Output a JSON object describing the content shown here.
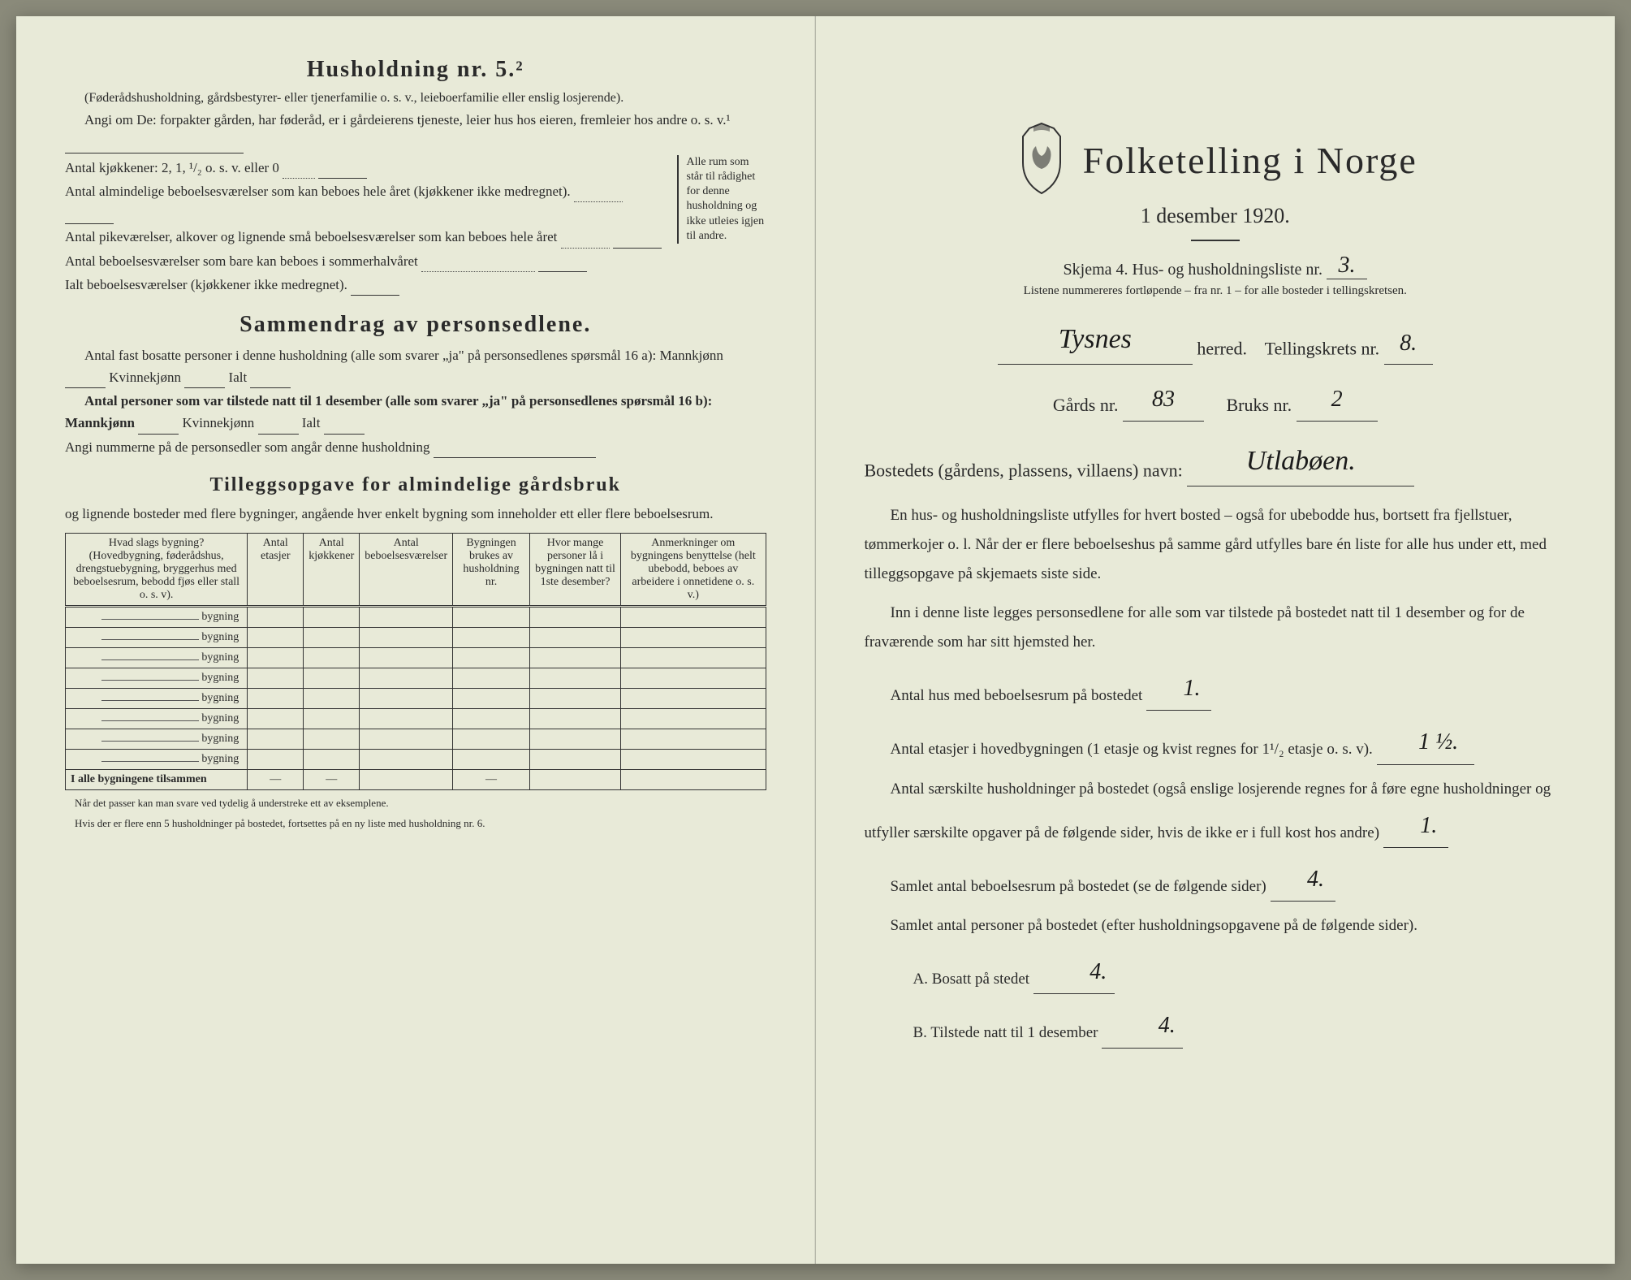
{
  "left": {
    "household_heading": "Husholdning nr. 5.²",
    "household_note": "(Føderådshusholdning, gårdsbestyrer- eller tjenerfamilie o. s. v., leieboerfamilie eller enslig losjerende).",
    "angi_om": "Angi om De:  forpakter gården, har føderåd, er i gårdeierens tjeneste, leier hus hos eieren, fremleier hos andre o. s. v.¹",
    "kitchens_label": "Antal kjøkkener: 2, 1, ¹/₂ o. s. v. eller 0",
    "rooms_1": "Antal almindelige beboelsesværelser som kan beboes hele året (kjøkkener ikke medregnet).",
    "rooms_2": "Antal pikeværelser, alkover og lignende små beboelsesværelser som kan beboes hele året",
    "rooms_3": "Antal beboelsesværelser som bare kan beboes i sommerhalvåret",
    "rooms_total": "Ialt beboelsesværelser  (kjøkkener ikke medregnet).",
    "brace_note": "Alle rum som står til rådighet for denne husholdning og ikke utleies igjen til andre.",
    "summary_heading": "Sammendrag av personsedlene.",
    "summary_1": "Antal fast bosatte personer i denne husholdning (alle som svarer „ja\" på personsedlenes spørsmål 16 a): Mannkjønn",
    "kvinne_label": "Kvinnekjønn",
    "ialt_label": "Ialt",
    "summary_2": "Antal personer som var tilstede natt til 1 desember (alle som svarer „ja\" på personsedlenes spørsmål 16 b): Mannkjønn",
    "summary_3": "Angi nummerne på de personsedler som angår denne husholdning",
    "tillegg_heading": "Tilleggsopgave for almindelige gårdsbruk",
    "tillegg_sub": "og lignende bosteder med flere bygninger, angående hver enkelt bygning som inneholder ett eller flere beboelsesrum.",
    "table": {
      "headers": [
        "Hvad slags bygning?\n(Hovedbygning, føderådshus, drengstuebygning, bryggerhus med beboelsesrum, bebodd fjøs eller stall o. s. v).",
        "Antal etasjer",
        "Antal kjøkkener",
        "Antal beboelsesværelser",
        "Bygningen brukes av husholdning nr.",
        "Hvor mange personer lå i bygningen natt til 1ste desember?",
        "Anmerkninger om bygningens benyttelse (helt ubebodd, beboes av arbeidere i onnetidene o. s. v.)"
      ],
      "row_suffix": "bygning",
      "row_count": 8,
      "total_label": "I alle bygningene tilsammen",
      "dash": "—"
    },
    "footnote1": "Når det passer kan man svare ved tydelig å understreke ett av eksemplene.",
    "footnote2": "Hvis der er flere enn 5 husholdninger på bostedet, fortsettes på en ny liste med husholdning nr. 6."
  },
  "right": {
    "title": "Folketelling  i  Norge",
    "date": "1 desember 1920.",
    "skjema": "Skjema 4.   Hus- og husholdningsliste nr.",
    "skjema_value": "3.",
    "listene_note": "Listene nummereres fortløpende – fra nr. 1 – for alle bosteder i tellingskretsen.",
    "herred_value": "Tysnes",
    "herred_label": "herred.",
    "tellingskrets_label": "Tellingskrets nr.",
    "tellingskrets_value": "8.",
    "gards_label": "Gårds nr.",
    "gards_value": "83",
    "bruks_label": "Bruks nr.",
    "bruks_value": "2",
    "bosted_label": "Bostedets (gårdens, plassens, villaens) navn:",
    "bosted_value": "Utlabøen.",
    "para1": "En hus- og husholdningsliste utfylles for hvert bosted – også for ubebodde hus, bortsett fra fjellstuer, tømmerkojer o. l.  Når der er flere beboelseshus på samme gård utfylles bare én liste for alle hus under ett, med tilleggsopgave på skjemaets siste side.",
    "para2": "Inn i denne liste legges personsedlene for alle som var tilstede på bostedet natt til 1 desember og for de fraværende som har sitt hjemsted her.",
    "q1": "Antal hus med beboelsesrum på bostedet",
    "q1_value": "1.",
    "q2a": "Antal etasjer i hovedbygningen (1 etasje og kvist regnes for 1¹/₂ etasje o. s. v).",
    "q2_value": "1 ½.",
    "q3": "Antal særskilte husholdninger på bostedet (også enslige losjerende regnes for å føre egne husholdninger og utfyller særskilte opgaver på de følgende sider, hvis de ikke er i full kost hos andre)",
    "q3_value": "1.",
    "q4": "Samlet antal beboelsesrum på bostedet (se de følgende sider)",
    "q4_value": "4.",
    "q5": "Samlet antal personer på bostedet (efter husholdningsopgavene på de følgende sider).",
    "q5a_label": "A.  Bosatt på stedet",
    "q5a_value": "4.",
    "q5b_label": "B.  Tilstede natt til 1 desember",
    "q5b_value": "4."
  }
}
